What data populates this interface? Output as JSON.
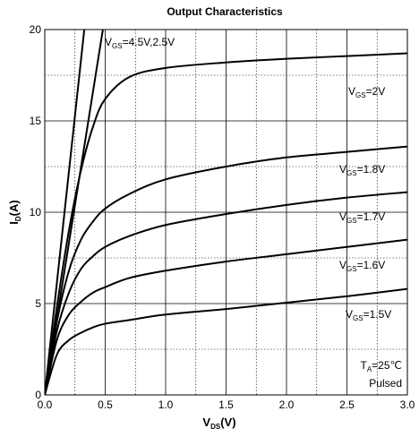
{
  "chart_data": {
    "type": "line",
    "title": "Output Characteristics",
    "xlabel": {
      "main": "V",
      "sub": "DS",
      "unit": "(V)"
    },
    "ylabel": {
      "main": "I",
      "sub": "D",
      "unit": "(A)"
    },
    "xlim": [
      0,
      3.0
    ],
    "ylim": [
      0,
      20
    ],
    "x_ticks": [
      "0.0",
      "0.5",
      "1.0",
      "1.5",
      "2.0",
      "2.5",
      "3.0"
    ],
    "y_ticks": [
      "0",
      "5",
      "10",
      "15",
      "20"
    ],
    "grid": true,
    "series": [
      {
        "x": [
          0,
          0.5
        ],
        "y": [
          0,
          20.8
        ]
      },
      {
        "x": [
          0,
          0.34
        ],
        "y": [
          0,
          20.8
        ]
      },
      {
        "x": [
          0,
          0.1,
          0.2,
          0.3,
          0.4,
          0.5,
          0.7,
          1.0,
          1.5,
          2.0,
          2.5,
          3.0
        ],
        "y": [
          0,
          4.8,
          9.0,
          12.3,
          14.7,
          16.2,
          17.4,
          17.9,
          18.2,
          18.4,
          18.55,
          18.7
        ]
      },
      {
        "x": [
          0,
          0.1,
          0.2,
          0.3,
          0.4,
          0.5,
          0.7,
          1.0,
          1.5,
          2.0,
          2.5,
          3.0
        ],
        "y": [
          0,
          4.0,
          6.8,
          8.5,
          9.5,
          10.2,
          11.0,
          11.8,
          12.5,
          13.0,
          13.3,
          13.6
        ]
      },
      {
        "x": [
          0,
          0.1,
          0.2,
          0.3,
          0.4,
          0.5,
          0.7,
          1.0,
          1.5,
          2.0,
          2.5,
          3.0
        ],
        "y": [
          0,
          3.5,
          5.6,
          6.9,
          7.6,
          8.1,
          8.7,
          9.3,
          9.9,
          10.4,
          10.8,
          11.1
        ]
      },
      {
        "x": [
          0,
          0.1,
          0.2,
          0.3,
          0.4,
          0.5,
          0.7,
          1.0,
          1.5,
          2.0,
          2.5,
          3.0
        ],
        "y": [
          0,
          3.0,
          4.4,
          5.1,
          5.6,
          5.9,
          6.4,
          6.8,
          7.3,
          7.7,
          8.1,
          8.5
        ]
      },
      {
        "x": [
          0,
          0.1,
          0.2,
          0.3,
          0.4,
          0.5,
          0.7,
          1.0,
          1.5,
          2.0,
          2.5,
          3.0
        ],
        "y": [
          0,
          2.2,
          3.0,
          3.4,
          3.7,
          3.9,
          4.1,
          4.4,
          4.7,
          5.05,
          5.4,
          5.8
        ]
      }
    ],
    "annotations": [
      {
        "main": "V",
        "sub": "GS",
        "text": "=4.5V,2.5V"
      },
      {
        "main": "V",
        "sub": "GS",
        "text": "=2V"
      },
      {
        "main": "V",
        "sub": "GS",
        "text": "=1.8V"
      },
      {
        "main": "V",
        "sub": "GS",
        "text": "=1.7V"
      },
      {
        "main": "V",
        "sub": "GS",
        "text": "=1.6V"
      },
      {
        "main": "V",
        "sub": "GS",
        "text": "=1.5V"
      },
      {
        "main": "T",
        "sub": "A",
        "text": "=25℃"
      },
      {
        "main": "",
        "sub": "",
        "text": "Pulsed"
      }
    ]
  }
}
